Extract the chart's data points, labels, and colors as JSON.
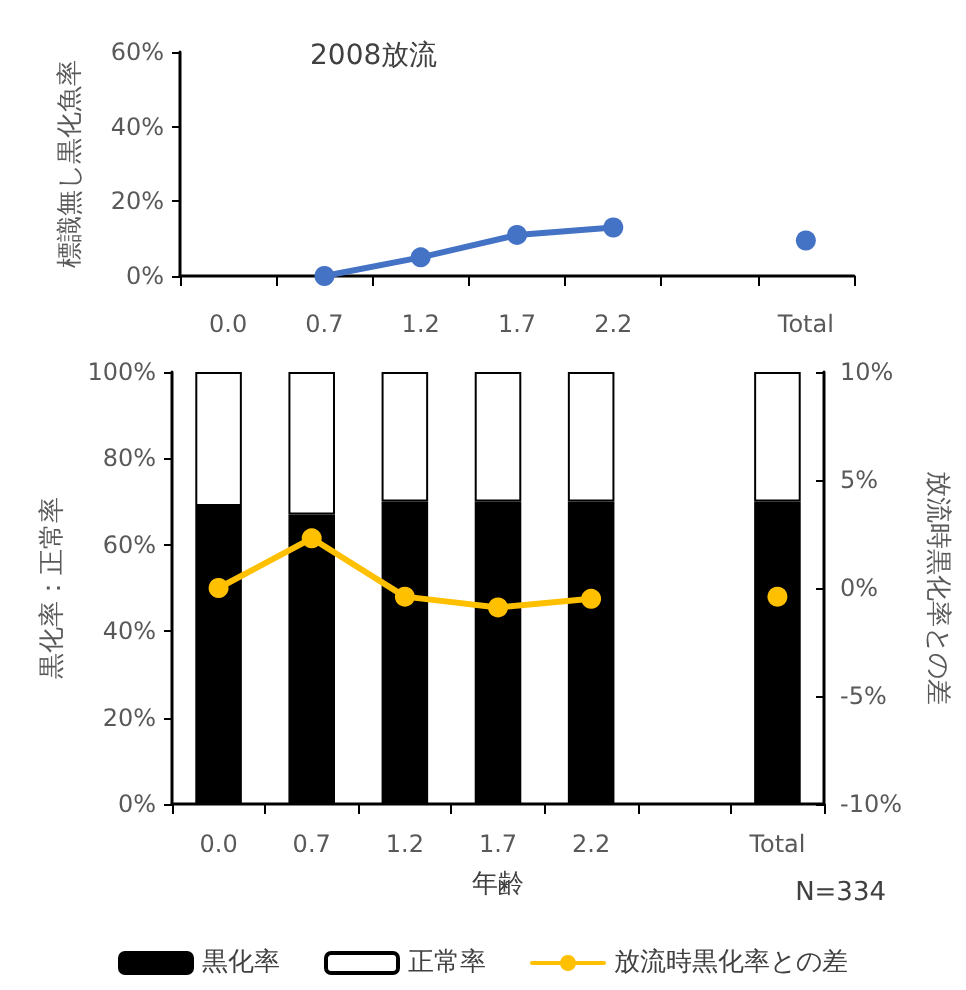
{
  "chart_data": [
    {
      "type": "line",
      "title": "2008放流",
      "ylabel": "標識無し黒化魚率",
      "categories": [
        "0.0",
        "0.7",
        "1.2",
        "1.7",
        "2.2",
        null,
        "Total"
      ],
      "series": [
        {
          "color": "#4472c4",
          "values": [
            null,
            0,
            5,
            11,
            13,
            null,
            9.5
          ]
        }
      ],
      "ylim": [
        0,
        60
      ],
      "yticks": [
        {
          "value": 0,
          "label": "0%"
        },
        {
          "value": 20,
          "label": "20%"
        },
        {
          "value": 40,
          "label": "40%"
        },
        {
          "value": 60,
          "label": "60%"
        }
      ],
      "marker": "circle",
      "line_style": "solid",
      "grid": false
    },
    {
      "type": "bar",
      "stacked": true,
      "xlabel": "年齢",
      "ylabel": "黒化率：正常率",
      "y2label": "放流時黒化率との差",
      "categories": [
        "0.0",
        "0.7",
        "1.2",
        "1.7",
        "2.2",
        null,
        "Total"
      ],
      "series": [
        {
          "name": "黒化率",
          "color": "#000000",
          "values": [
            69,
            67,
            70,
            70,
            70,
            null,
            70
          ]
        },
        {
          "name": "正常率",
          "color": "#ffffff",
          "values": [
            31,
            33,
            30,
            30,
            30,
            null,
            30
          ]
        },
        {
          "name": "放流時黒化率との差",
          "type": "line",
          "axis": "y2",
          "color": "#ffc000",
          "values": [
            0,
            2.3,
            -0.4,
            -0.9,
            -0.5,
            null,
            -0.4
          ]
        }
      ],
      "ylim": [
        0,
        100
      ],
      "yticks": [
        {
          "value": 0,
          "label": "0%"
        },
        {
          "value": 20,
          "label": "20%"
        },
        {
          "value": 40,
          "label": "40%"
        },
        {
          "value": 60,
          "label": "60%"
        },
        {
          "value": 80,
          "label": "80%"
        },
        {
          "value": 100,
          "label": "100%"
        }
      ],
      "y2lim": [
        -10,
        10
      ],
      "y2ticks": [
        {
          "value": -10,
          "label": "-10%"
        },
        {
          "value": -5,
          "label": "-5%"
        },
        {
          "value": 0,
          "label": "0%"
        },
        {
          "value": 5,
          "label": "5%"
        },
        {
          "value": 10,
          "label": "10%"
        }
      ],
      "annotations": [
        "N=334"
      ],
      "marker": "circle",
      "line_style": "solid",
      "legend": "bottom",
      "grid": false
    }
  ]
}
